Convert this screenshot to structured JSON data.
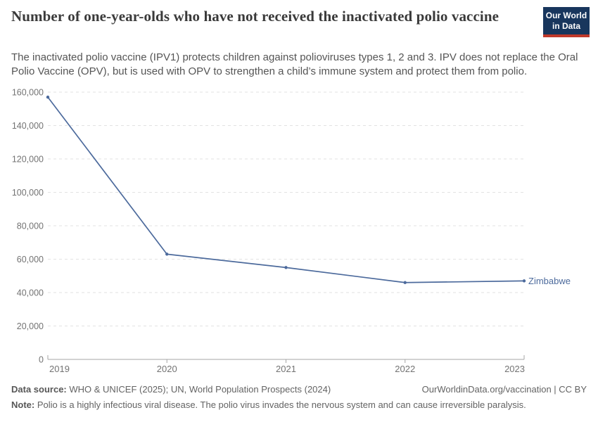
{
  "branding": {
    "logo_line1": "Our World",
    "logo_line2": "in Data",
    "logo_bg_color": "#18365D",
    "logo_stripe_color": "#C0392B"
  },
  "chart_data": {
    "type": "line",
    "title": "Number of one-year-olds who have not received the inactivated polio vaccine",
    "subtitle": "The inactivated polio vaccine (IPV1) protects children against polioviruses types 1, 2 and 3. IPV does not replace the Oral Polio Vaccine (OPV), but is used with OPV to strengthen a child’s immune system and protect them from polio.",
    "x": [
      2019,
      2020,
      2021,
      2022,
      2023
    ],
    "series": [
      {
        "name": "Zimbabwe",
        "color": "#4C6A9C",
        "values": [
          157000,
          63000,
          55000,
          46000,
          47000
        ]
      }
    ],
    "xlabel": "",
    "ylabel": "",
    "ylim": [
      0,
      160000
    ],
    "ytick_interval": 20000,
    "ytick_labels": [
      "0",
      "20,000",
      "40,000",
      "60,000",
      "80,000",
      "100,000",
      "120,000",
      "140,000",
      "160,000"
    ],
    "grid": "horizontal-dashed",
    "grid_color": "#e2e2e2",
    "axis_color": "#a5a5a5",
    "tick_label_color": "#737373",
    "legend_position": "end-of-line-label"
  },
  "footer": {
    "source_label": "Data source:",
    "source_text": " WHO & UNICEF (2025); UN, World Population Prospects (2024)",
    "link_text": "OurWorldinData.org/vaccination | CC BY",
    "note_label": "Note:",
    "note_text": " Polio is a highly infectious viral disease. The polio virus invades the nervous system and can cause irreversible paralysis."
  }
}
